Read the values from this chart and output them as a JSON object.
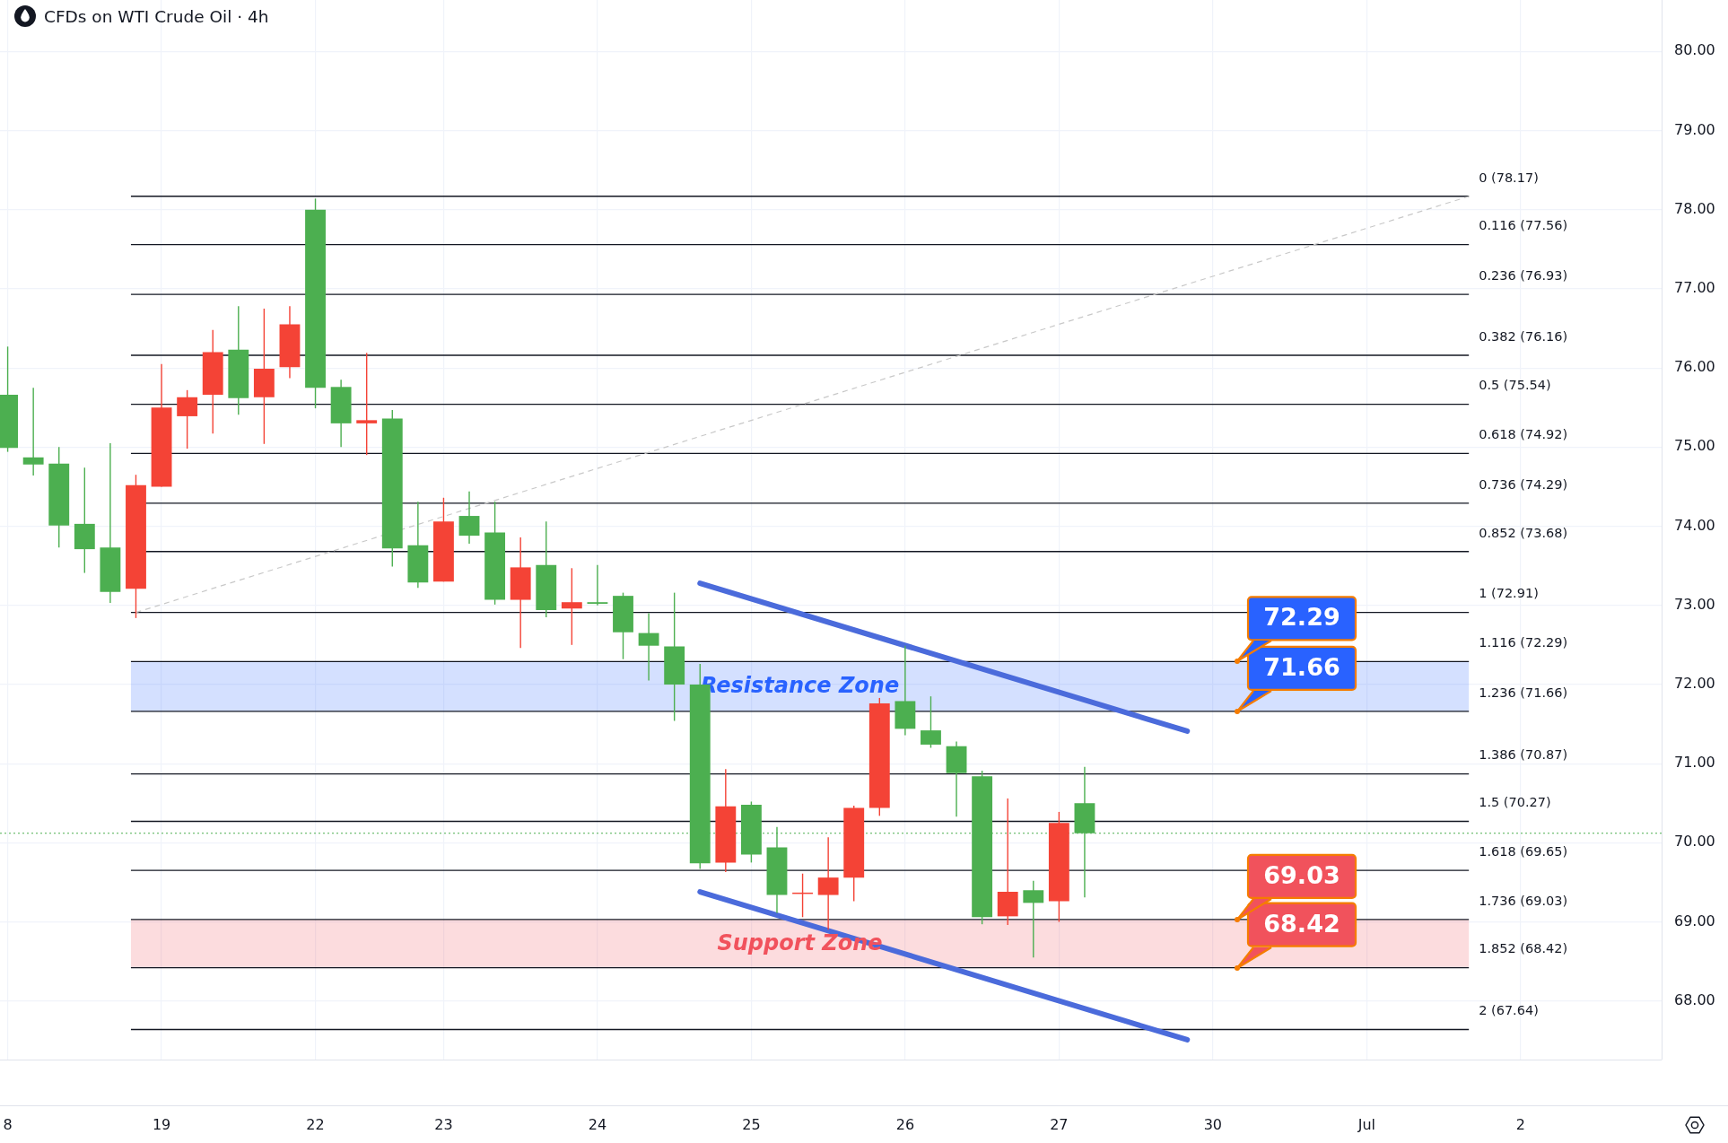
{
  "chart_data": {
    "type": "candlestick",
    "title": "CFDs on WTI Crude Oil · 4h",
    "categories": [
      "8",
      null,
      null,
      null,
      null,
      null,
      "19",
      null,
      null,
      null,
      null,
      null,
      "22",
      null,
      null,
      null,
      null,
      "23",
      null,
      null,
      null,
      null,
      null,
      "24",
      null,
      null,
      null,
      null,
      null,
      "25",
      null,
      null,
      null,
      null,
      null,
      "26",
      null,
      null,
      null,
      null,
      null,
      "27",
      null,
      null,
      null,
      null,
      null,
      "30",
      null,
      null,
      null,
      null,
      null,
      "Jul",
      null,
      null,
      null,
      null,
      null,
      "2",
      null,
      null,
      null,
      null,
      null
    ],
    "ohlc": [
      [
        74.99,
        76.27,
        74.94,
        75.66
      ],
      [
        74.78,
        75.75,
        74.64,
        74.87
      ],
      [
        74.01,
        75.0,
        73.73,
        74.79
      ],
      [
        73.71,
        74.74,
        73.41,
        74.03
      ],
      [
        73.17,
        75.05,
        73.03,
        73.73
      ],
      [
        74.52,
        74.65,
        72.84,
        73.21
      ],
      [
        75.5,
        76.05,
        74.5,
        74.5
      ],
      [
        75.63,
        75.72,
        74.98,
        75.39
      ],
      [
        76.2,
        76.48,
        75.17,
        75.66
      ],
      [
        75.62,
        76.78,
        75.41,
        76.23
      ],
      [
        75.99,
        76.75,
        75.04,
        75.63
      ],
      [
        76.55,
        76.78,
        75.87,
        76.01
      ],
      [
        75.75,
        78.14,
        75.49,
        78.0
      ],
      [
        75.3,
        75.85,
        75.0,
        75.76
      ],
      [
        75.34,
        76.19,
        74.9,
        75.3
      ],
      [
        73.72,
        75.47,
        73.49,
        75.36
      ],
      [
        73.29,
        74.31,
        73.22,
        73.76
      ],
      [
        74.06,
        74.36,
        73.3,
        73.3
      ],
      [
        73.88,
        74.44,
        73.78,
        74.13
      ],
      [
        73.07,
        74.31,
        73.01,
        73.92
      ],
      [
        73.48,
        73.86,
        72.46,
        73.07
      ],
      [
        72.94,
        74.06,
        72.85,
        73.51
      ],
      [
        73.04,
        73.47,
        72.5,
        72.96
      ],
      [
        73.02,
        73.51,
        73.0,
        73.04
      ],
      [
        72.66,
        73.16,
        72.32,
        73.12
      ],
      [
        72.49,
        72.9,
        72.05,
        72.65
      ],
      [
        72.0,
        73.16,
        71.54,
        72.48
      ],
      [
        69.74,
        72.26,
        69.67,
        72.0
      ],
      [
        70.46,
        70.93,
        69.63,
        69.75
      ],
      [
        69.85,
        70.52,
        69.75,
        70.48
      ],
      [
        69.34,
        70.2,
        69.11,
        69.94
      ],
      [
        69.37,
        69.61,
        69.06,
        69.36
      ],
      [
        69.56,
        70.07,
        68.9,
        69.34
      ],
      [
        70.44,
        70.47,
        69.26,
        69.56
      ],
      [
        71.76,
        71.83,
        70.34,
        70.44
      ],
      [
        71.44,
        72.49,
        71.36,
        71.79
      ],
      [
        71.24,
        71.85,
        71.2,
        71.42
      ],
      [
        70.88,
        71.28,
        70.33,
        71.22
      ],
      [
        69.06,
        70.91,
        68.97,
        70.84
      ],
      [
        69.38,
        70.56,
        68.96,
        69.07
      ],
      [
        69.24,
        69.52,
        68.55,
        69.4
      ],
      [
        70.25,
        70.39,
        69.0,
        69.26
      ],
      [
        70.12,
        70.96,
        69.31,
        70.5
      ],
      null,
      null,
      null,
      null,
      null,
      null,
      null,
      null,
      null,
      null,
      null,
      null,
      null,
      null,
      null,
      null,
      null,
      null,
      null,
      null,
      null,
      null
    ],
    "colors": [
      "#4caf50",
      "#4caf50",
      "#4caf50",
      "#4caf50",
      "#4caf50",
      "#f44336",
      "#f44336",
      "#f44336",
      "#f44336",
      "#4caf50",
      "#f44336",
      "#f44336",
      "#4caf50",
      "#4caf50",
      "#f44336",
      "#4caf50",
      "#4caf50",
      "#f44336",
      "#4caf50",
      "#4caf50",
      "#f44336",
      "#4caf50",
      "#f44336",
      "#4caf50",
      "#4caf50",
      "#4caf50",
      "#4caf50",
      "#4caf50",
      "#f44336",
      "#4caf50",
      "#4caf50",
      "#f44336",
      "#f44336",
      "#f44336",
      "#f44336",
      "#4caf50",
      "#4caf50",
      "#4caf50",
      "#4caf50",
      "#f44336",
      "#4caf50",
      "#f44336",
      "#4caf50",
      null,
      null,
      null,
      null,
      null,
      null,
      null,
      null,
      null,
      null,
      null,
      null,
      null,
      null,
      null,
      null,
      null,
      null,
      null,
      null,
      null,
      null
    ],
    "series": [
      {
        "type": "line",
        "color": "#4b6bdb",
        "line_style": "solid",
        "values": [
          null,
          null,
          null,
          null,
          null,
          null,
          null,
          null,
          null,
          null,
          null,
          null,
          null,
          null,
          null,
          null,
          null,
          null,
          null,
          null,
          null,
          null,
          null,
          null,
          null,
          null,
          null,
          73.28,
          null,
          null,
          null,
          null,
          null,
          null,
          null,
          null,
          null,
          null,
          null,
          null,
          null,
          null,
          null,
          null,
          null,
          null,
          71.41,
          null,
          null,
          null,
          null,
          null,
          null,
          null,
          null,
          null,
          null,
          null,
          null,
          null,
          null,
          null,
          null,
          null,
          null
        ]
      },
      {
        "type": "line",
        "color": "#4b6bdb",
        "line_style": "solid",
        "values": [
          null,
          null,
          null,
          null,
          null,
          null,
          null,
          null,
          null,
          null,
          null,
          null,
          null,
          null,
          null,
          null,
          null,
          null,
          null,
          null,
          null,
          null,
          null,
          null,
          null,
          null,
          null,
          69.38,
          null,
          null,
          null,
          null,
          null,
          null,
          null,
          null,
          null,
          null,
          null,
          null,
          null,
          null,
          null,
          null,
          null,
          null,
          67.51,
          null,
          null,
          null,
          null,
          null,
          null,
          null,
          null,
          null,
          null,
          null,
          null,
          null,
          null,
          null,
          null,
          null,
          null
        ]
      },
      {
        "type": "line",
        "color": "#c8c8c8",
        "line_style": "dashed",
        "values": [
          null,
          null,
          null,
          null,
          null,
          72.91,
          null,
          null,
          null,
          null,
          null,
          null,
          null,
          null,
          null,
          null,
          null,
          null,
          null,
          null,
          null,
          null,
          null,
          null,
          null,
          null,
          null,
          null,
          null,
          null,
          null,
          null,
          null,
          null,
          null,
          null,
          null,
          null,
          null,
          null,
          null,
          null,
          null,
          null,
          null,
          null,
          null,
          null,
          null,
          null,
          null,
          null,
          null,
          null,
          null,
          null,
          null,
          78.17,
          null,
          null,
          null,
          null,
          null,
          null,
          null
        ]
      }
    ],
    "marker": "none",
    "ylim": [
      67.26,
      80.65
    ],
    "yticks": [
      {
        "value": 68,
        "label": "68.00"
      },
      {
        "value": 69,
        "label": "69.00"
      },
      {
        "value": 70,
        "label": "70.00"
      },
      {
        "value": 71,
        "label": "71.00"
      },
      {
        "value": 72,
        "label": "72.00"
      },
      {
        "value": 73,
        "label": "73.00"
      },
      {
        "value": 74,
        "label": "74.00"
      },
      {
        "value": 75,
        "label": "75.00"
      },
      {
        "value": 76,
        "label": "76.00"
      },
      {
        "value": 77,
        "label": "77.00"
      },
      {
        "value": 78,
        "label": "78.00"
      },
      {
        "value": 79,
        "label": "79.00"
      },
      {
        "value": 80,
        "label": "80.00"
      }
    ],
    "grid": true,
    "bands": [
      {
        "axis": "y",
        "from": 71.66,
        "to": 72.29,
        "label": "Resistance Zone",
        "color": "#2962ff"
      },
      {
        "axis": "y",
        "from": 68.42,
        "to": 69.03,
        "label": "Support Zone",
        "color": "#f1525c"
      }
    ],
    "ref_lines": [
      {
        "axis": "y",
        "value": 78.17,
        "label": "0 (78.17)",
        "color": "#131722"
      },
      {
        "axis": "y",
        "value": 77.56,
        "label": "0.116 (77.56)",
        "color": "#131722"
      },
      {
        "axis": "y",
        "value": 76.93,
        "label": "0.236 (76.93)",
        "color": "#131722"
      },
      {
        "axis": "y",
        "value": 76.16,
        "label": "0.382 (76.16)",
        "color": "#131722"
      },
      {
        "axis": "y",
        "value": 75.54,
        "label": "0.5 (75.54)",
        "color": "#131722"
      },
      {
        "axis": "y",
        "value": 74.92,
        "label": "0.618 (74.92)",
        "color": "#131722"
      },
      {
        "axis": "y",
        "value": 74.29,
        "label": "0.736 (74.29)",
        "color": "#131722"
      },
      {
        "axis": "y",
        "value": 73.68,
        "label": "0.852 (73.68)",
        "color": "#131722"
      },
      {
        "axis": "y",
        "value": 72.91,
        "label": "1 (72.91)",
        "color": "#131722"
      },
      {
        "axis": "y",
        "value": 72.29,
        "label": "1.116 (72.29)",
        "color": "#131722"
      },
      {
        "axis": "y",
        "value": 71.66,
        "label": "1.236 (71.66)",
        "color": "#131722"
      },
      {
        "axis": "y",
        "value": 70.87,
        "label": "1.386 (70.87)",
        "color": "#131722"
      },
      {
        "axis": "y",
        "value": 70.27,
        "label": "1.5 (70.27)",
        "color": "#131722"
      },
      {
        "axis": "y",
        "value": 69.65,
        "label": "1.618 (69.65)",
        "color": "#131722"
      },
      {
        "axis": "y",
        "value": 69.03,
        "label": "1.736 (69.03)",
        "color": "#131722"
      },
      {
        "axis": "y",
        "value": 68.42,
        "label": "1.852 (68.42)",
        "color": "#131722"
      },
      {
        "axis": "y",
        "value": 67.64,
        "label": "2 (67.64)",
        "color": "#131722"
      },
      {
        "axis": "y",
        "value": 70.12,
        "color": "#4caf50",
        "line_style": "dotted"
      }
    ],
    "annotations": [
      {
        "text": "72.29",
        "y": 72.29
      },
      {
        "text": "71.66",
        "y": 71.66
      },
      {
        "text": "69.03",
        "y": 69.03
      },
      {
        "text": "68.42",
        "y": 68.42
      }
    ]
  }
}
